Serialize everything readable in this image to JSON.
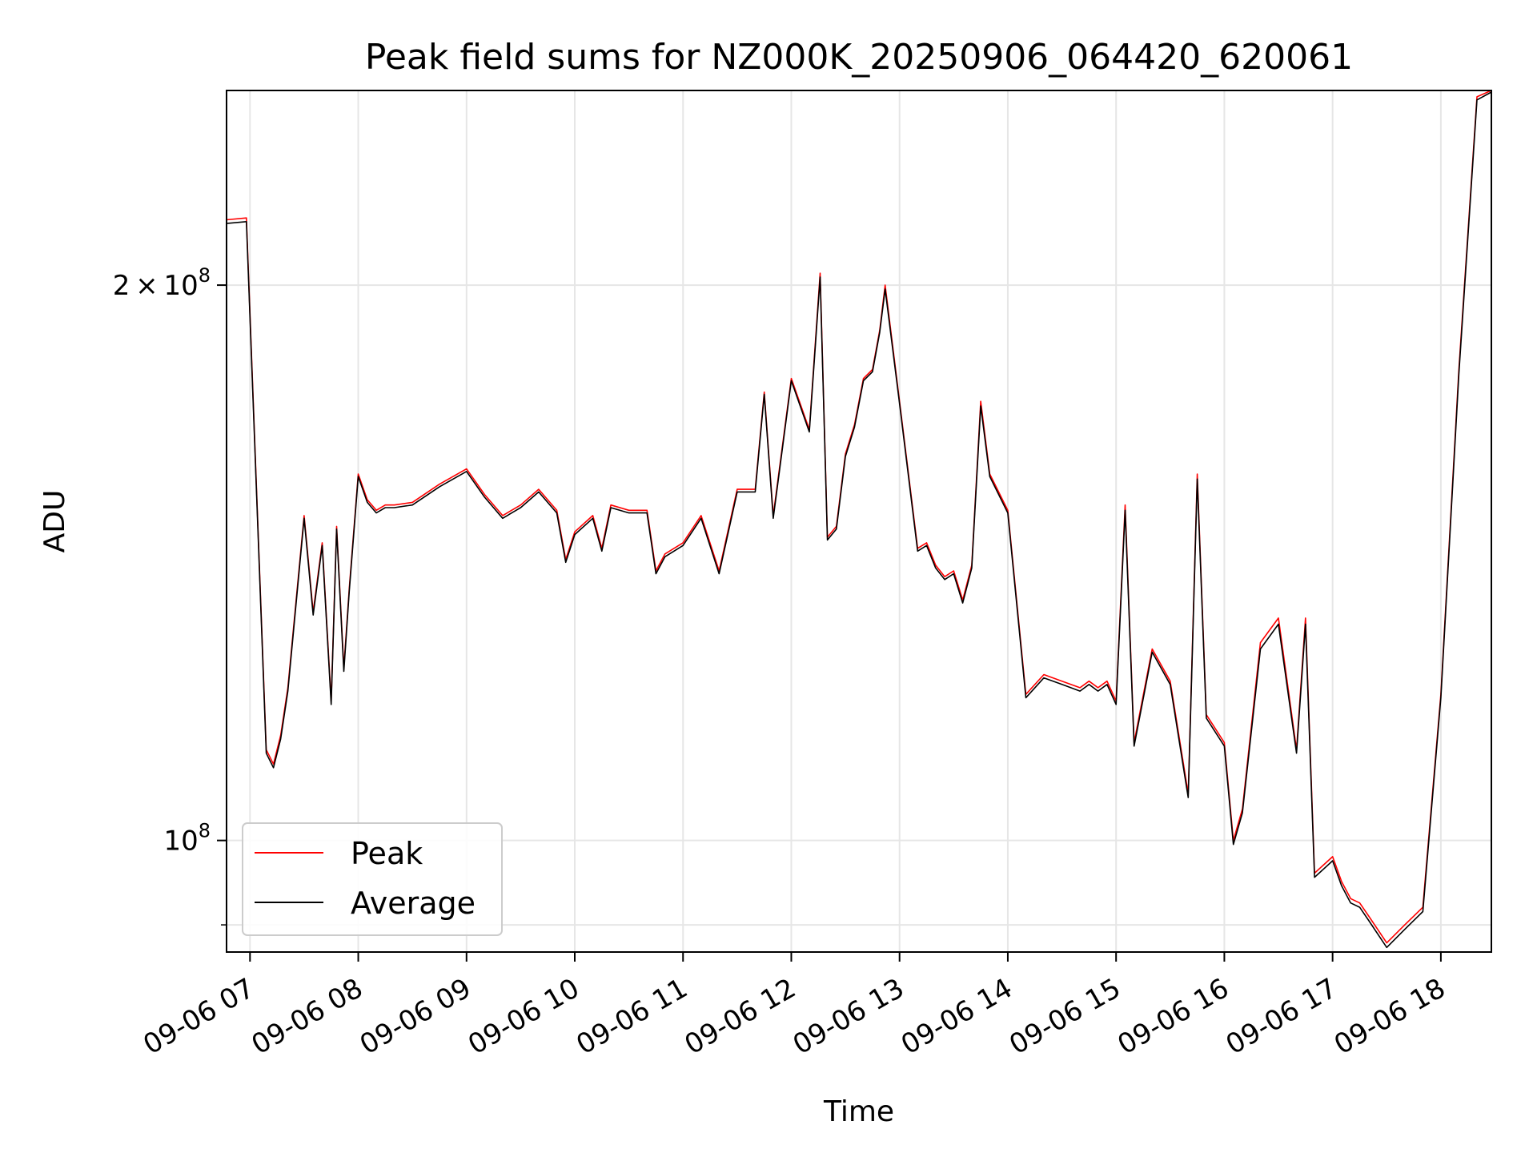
{
  "chart_data": {
    "type": "line",
    "title": "Peak field sums for NZ000K_20250906_064420_620061",
    "xlabel": "Time",
    "ylabel": "ADU",
    "y_scale": "log",
    "xlim": [
      "2025-09-06 06:47",
      "2025-09-06 18:28"
    ],
    "ylim": [
      87000000,
      255000000
    ],
    "x_tick_labels": [
      "09-06 07",
      "09-06 08",
      "09-06 09",
      "09-06 10",
      "09-06 11",
      "09-06 12",
      "09-06 13",
      "09-06 14",
      "09-06 15",
      "09-06 16",
      "09-06 17",
      "09-06 18"
    ],
    "y_tick_labels": [
      {
        "value": 200000000,
        "mantissa": "2",
        "times": "×",
        "base": "10",
        "exp": "8"
      },
      {
        "value": 100000000,
        "mantissa": "",
        "times": "",
        "base": "10",
        "exp": "8"
      }
    ],
    "grid": true,
    "legend_position": "lower-left",
    "x": [
      "06:47",
      "06:58",
      "07:09",
      "07:13",
      "07:17",
      "07:21",
      "07:30",
      "07:35",
      "07:40",
      "07:45",
      "07:48",
      "07:52",
      "07:55",
      "08:00",
      "08:05",
      "08:10",
      "08:15",
      "08:20",
      "08:30",
      "08:45",
      "09:00",
      "09:10",
      "09:20",
      "09:30",
      "09:40",
      "09:50",
      "09:55",
      "10:00",
      "10:10",
      "10:15",
      "10:20",
      "10:30",
      "10:40",
      "10:45",
      "10:50",
      "11:00",
      "11:10",
      "11:20",
      "11:30",
      "11:40",
      "11:45",
      "11:50",
      "12:00",
      "12:10",
      "12:16",
      "12:20",
      "12:25",
      "12:30",
      "12:35",
      "12:40",
      "12:45",
      "12:49",
      "12:52",
      "13:00",
      "13:10",
      "13:15",
      "13:20",
      "13:25",
      "13:30",
      "13:35",
      "13:40",
      "13:45",
      "13:50",
      "14:00",
      "14:10",
      "14:20",
      "14:30",
      "14:40",
      "14:45",
      "14:50",
      "14:55",
      "15:00",
      "15:05",
      "15:10",
      "15:20",
      "15:30",
      "15:40",
      "15:45",
      "15:50",
      "16:00",
      "16:05",
      "16:10",
      "16:20",
      "16:30",
      "16:40",
      "16:45",
      "16:50",
      "17:00",
      "17:05",
      "17:10",
      "17:15",
      "17:20",
      "17:30",
      "17:40",
      "17:50",
      "17:55",
      "18:00",
      "18:10",
      "18:20",
      "18:28"
    ],
    "series": [
      {
        "name": "Peak",
        "color": "#ff0000",
        "values": [
          217000000,
          217500000,
          112000000,
          110000000,
          114000000,
          121000000,
          150000000,
          133000000,
          145000000,
          119000000,
          148000000,
          124000000,
          137000000,
          158000000,
          153000000,
          151000000,
          152000000,
          152000000,
          152500000,
          156000000,
          159000000,
          154000000,
          150000000,
          152000000,
          155000000,
          151000000,
          142000000,
          147000000,
          150000000,
          144000000,
          152000000,
          151000000,
          151000000,
          140000000,
          143000000,
          145000000,
          150000000,
          140000000,
          155000000,
          155000000,
          175000000,
          150000000,
          178000000,
          167000000,
          203000000,
          146000000,
          148000000,
          162000000,
          168000000,
          178000000,
          180000000,
          189000000,
          200000000,
          173000000,
          144000000,
          145000000,
          141000000,
          139000000,
          140000000,
          135000000,
          141000000,
          173000000,
          158000000,
          151000000,
          120000000,
          123000000,
          122000000,
          121000000,
          122000000,
          121000000,
          122000000,
          119000000,
          152000000,
          113000000,
          127000000,
          122000000,
          106000000,
          158000000,
          117000000,
          113000000,
          100000000,
          104000000,
          128000000,
          132000000,
          112000000,
          132000000,
          96000000,
          98000000,
          95000000,
          93000000,
          92500000,
          91000000,
          88000000,
          90000000,
          92000000,
          105000000,
          120000000,
          180000000,
          253000000,
          255000000
        ]
      },
      {
        "name": "Average",
        "color": "#000000",
        "values": [
          216000000,
          216500000,
          111500000,
          109500000,
          113500000,
          120500000,
          149500000,
          132500000,
          144500000,
          118500000,
          147500000,
          123500000,
          136500000,
          157500000,
          152500000,
          150500000,
          151500000,
          151500000,
          152000000,
          155500000,
          158500000,
          153500000,
          149500000,
          151500000,
          154500000,
          150500000,
          141500000,
          146500000,
          149500000,
          143500000,
          151500000,
          150500000,
          150500000,
          139500000,
          142500000,
          144500000,
          149500000,
          139500000,
          154500000,
          154500000,
          174500000,
          149500000,
          177500000,
          166500000,
          202000000,
          145500000,
          147500000,
          161500000,
          167500000,
          177500000,
          179500000,
          188500000,
          199000000,
          172500000,
          143500000,
          144500000,
          140500000,
          138500000,
          139500000,
          134500000,
          140500000,
          172000000,
          157500000,
          150500000,
          119500000,
          122500000,
          121500000,
          120500000,
          121500000,
          120500000,
          121500000,
          118500000,
          151000000,
          112500000,
          126500000,
          121500000,
          105500000,
          157000000,
          116500000,
          112500000,
          99500000,
          103500000,
          127000000,
          131000000,
          111500000,
          131000000,
          95500000,
          97500000,
          94500000,
          92500000,
          92000000,
          90500000,
          87500000,
          89500000,
          91500000,
          104500000,
          119500000,
          179000000,
          252000000,
          254500000
        ]
      }
    ]
  }
}
